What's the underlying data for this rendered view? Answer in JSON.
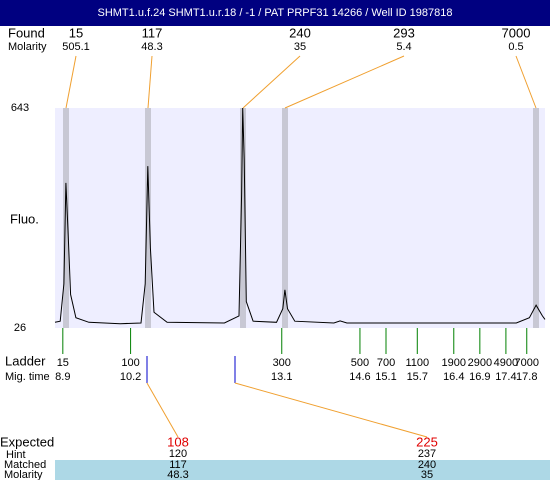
{
  "header": {
    "title": "SHMT1.u.f.24  SHMT1.u.r.18 / -1 / PAT PRPF31 14266 / Well ID 1987818"
  },
  "found": {
    "label": "Found",
    "molarity_label": "Molarity",
    "peaks": [
      {
        "size": 15,
        "molarity": 505.1
      },
      {
        "size": 117,
        "molarity": 48.3
      },
      {
        "size": 240,
        "molarity": 35
      },
      {
        "size": 293,
        "molarity": 5.4
      },
      {
        "size": 7000,
        "molarity": 0.5
      }
    ]
  },
  "trace": {
    "type": "line",
    "y_label": "Fluo.",
    "color": "#000000",
    "xlim": [
      8.75,
      18.15
    ],
    "ylim": [
      26,
      643
    ],
    "yticks": [
      26,
      643
    ],
    "x": [
      8.75,
      8.85,
      8.92,
      8.96,
      9.0,
      9.05,
      9.15,
      9.4,
      10.0,
      10.4,
      10.48,
      10.53,
      10.58,
      10.65,
      10.9,
      12.0,
      12.28,
      12.33,
      12.35,
      12.38,
      12.42,
      12.55,
      13.0,
      13.12,
      13.16,
      13.21,
      13.35,
      14.1,
      14.22,
      14.35,
      17.6,
      17.85,
      17.98,
      18.1,
      18.15
    ],
    "y": [
      42,
      45,
      150,
      433,
      300,
      120,
      55,
      42,
      38,
      40,
      150,
      480,
      250,
      70,
      42,
      40,
      60,
      400,
      643,
      500,
      100,
      45,
      42,
      80,
      133,
      80,
      45,
      40,
      46,
      40,
      40,
      55,
      90,
      60,
      50
    ]
  },
  "ladder": {
    "label": "Ladder",
    "time_label": "Mig. time",
    "sizes": [
      15,
      100,
      300,
      500,
      700,
      1100,
      1900,
      2900,
      4900,
      7000
    ],
    "times": [
      8.9,
      10.2,
      13.1,
      14.6,
      15.1,
      15.7,
      16.4,
      16.9,
      17.4,
      17.8
    ]
  },
  "expected": {
    "label": "Expected",
    "hint_label": "Hint",
    "matched_label": "Matched",
    "molarity_label": "Molarity",
    "columns": [
      {
        "expected": 108,
        "hint": 120,
        "matched": 117,
        "molarity": 48.3
      },
      {
        "expected": 225,
        "hint": 237,
        "matched": 240,
        "molarity": 35
      }
    ]
  }
}
